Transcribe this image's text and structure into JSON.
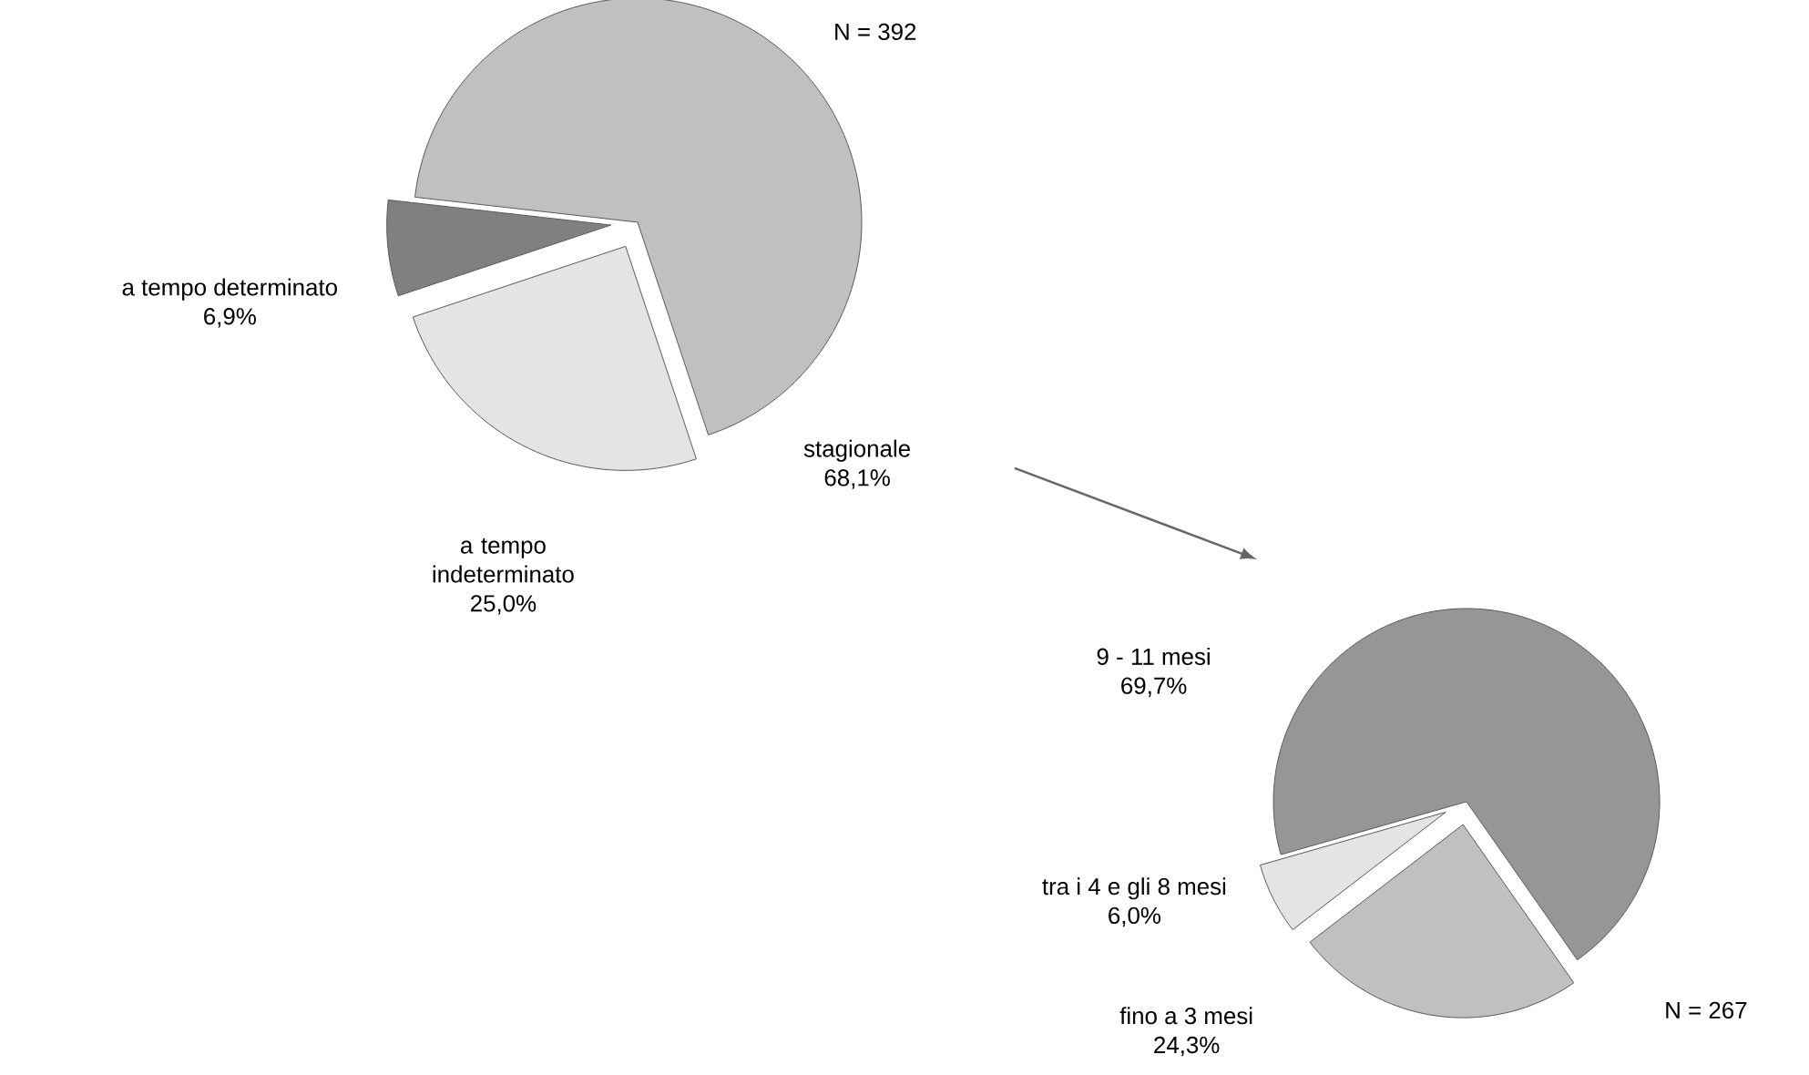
{
  "chart_data": [
    {
      "type": "pie",
      "categories": [
        "stagionale",
        "a tempo determinato",
        "a tempo indeterminato"
      ],
      "values": [
        68.1,
        6.9,
        25.0
      ],
      "colors": [
        "#c0c0c0",
        "#808080",
        "#e4e4e4"
      ],
      "value_labels": [
        "68,1%",
        "6,9%",
        "25,0%"
      ],
      "annotations": [
        "N = 392"
      ]
    },
    {
      "type": "pie",
      "categories": [
        "9 - 11 mesi",
        "tra i 4 e gli 8 mesi",
        "fino a 3 mesi"
      ],
      "values": [
        69.7,
        6.0,
        24.3
      ],
      "colors": [
        "#969696",
        "#e4e4e4",
        "#c0c0c0"
      ],
      "value_labels": [
        "69,7%",
        "6,0%",
        "24,3%"
      ],
      "annotations": [
        "N = 267"
      ]
    }
  ]
}
